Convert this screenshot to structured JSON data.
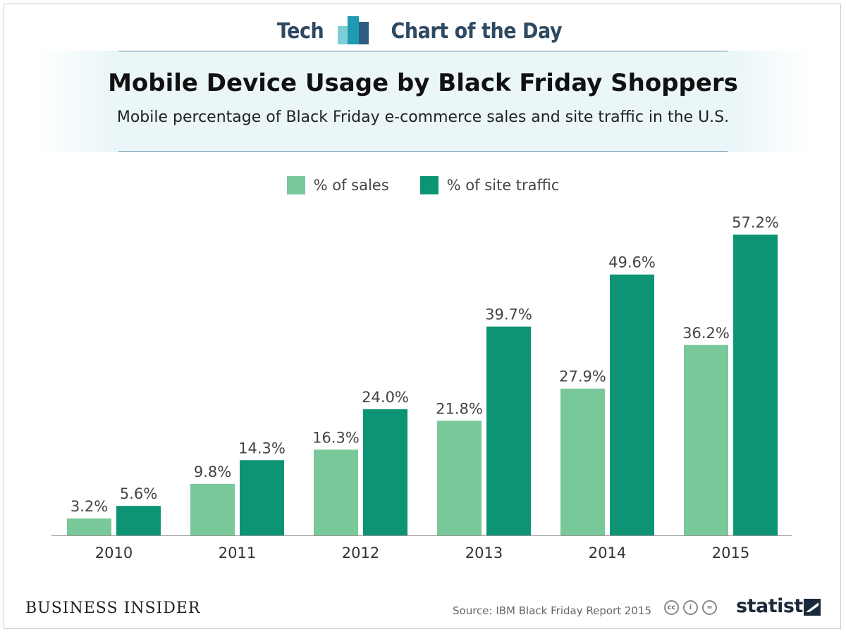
{
  "header": {
    "left": "Tech",
    "right": "Chart of the Day"
  },
  "colors": {
    "sales": "#78c89a",
    "traffic": "#0c9474",
    "brand": "#2e4a62"
  },
  "footer": {
    "publisher": "BUSINESS INSIDER",
    "source": "Source: IBM Black Friday Report 2015",
    "logo": "statista"
  },
  "chart_data": {
    "type": "bar",
    "title": "Mobile Device Usage by Black Friday Shoppers",
    "subtitle": "Mobile percentage of Black Friday e-commerce sales and site traffic in the U.S.",
    "categories": [
      "2010",
      "2011",
      "2012",
      "2013",
      "2014",
      "2015"
    ],
    "series": [
      {
        "name": "% of sales",
        "values": [
          3.2,
          9.8,
          16.3,
          21.8,
          27.9,
          36.2
        ],
        "labels": [
          "3.2%",
          "9.8%",
          "16.3%",
          "21.8%",
          "27.9%",
          "36.2%"
        ]
      },
      {
        "name": "% of site traffic",
        "values": [
          5.6,
          14.3,
          24.0,
          39.7,
          49.6,
          57.2
        ],
        "labels": [
          "5.6%",
          "14.3%",
          "24.0%",
          "39.7%",
          "49.6%",
          "57.2%"
        ]
      }
    ],
    "ylim": [
      0,
      57.2
    ],
    "legend": "top-center",
    "grid": false
  }
}
